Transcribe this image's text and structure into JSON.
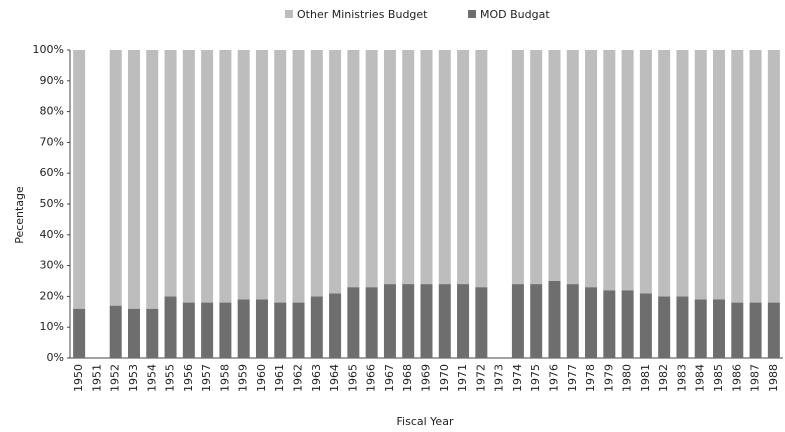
{
  "chart_data": {
    "type": "stacked_bar",
    "ylabel": "Pecentage",
    "xlabel": "Fiscal Year",
    "categories": [
      "1950",
      "1951",
      "1952",
      "1953",
      "1954",
      "1955",
      "1956",
      "1957",
      "1958",
      "1959",
      "1960",
      "1961",
      "1962",
      "1963",
      "1964",
      "1965",
      "1966",
      "1967",
      "1968",
      "1969",
      "1970",
      "1971",
      "1972",
      "1973",
      "1974",
      "1975",
      "1976",
      "1977",
      "1978",
      "1979",
      "1980",
      "1981",
      "1982",
      "1983",
      "1984",
      "1985",
      "1986",
      "1987",
      "1988"
    ],
    "series": [
      {
        "name": "MOD Budgat",
        "color": "#6e6e6e",
        "values": [
          16,
          null,
          17,
          16,
          16,
          20,
          18,
          18,
          18,
          19,
          19,
          18,
          18,
          20,
          21,
          23,
          23,
          24,
          24,
          24,
          24,
          24,
          23,
          null,
          24,
          24,
          25,
          24,
          23,
          22,
          22,
          21,
          20,
          20,
          19,
          19,
          18,
          18,
          18
        ]
      },
      {
        "name": "Other Ministries Budget",
        "color": "#bdbdbd",
        "values": [
          84,
          null,
          83,
          84,
          84,
          80,
          82,
          82,
          82,
          81,
          81,
          82,
          82,
          80,
          79,
          77,
          77,
          76,
          76,
          76,
          76,
          76,
          77,
          null,
          76,
          76,
          75,
          76,
          77,
          78,
          78,
          79,
          80,
          80,
          81,
          81,
          82,
          82,
          82
        ]
      }
    ],
    "legend_order": [
      1,
      0
    ],
    "ylim": [
      0,
      100
    ],
    "yticks": [
      {
        "value": 0,
        "label": "0%"
      },
      {
        "value": 10,
        "label": "10%"
      },
      {
        "value": 20,
        "label": "20%"
      },
      {
        "value": 30,
        "label": "30%"
      },
      {
        "value": 40,
        "label": "40%"
      },
      {
        "value": 50,
        "label": "50%"
      },
      {
        "value": 60,
        "label": "60%"
      },
      {
        "value": 70,
        "label": "70%"
      },
      {
        "value": 80,
        "label": "80%"
      },
      {
        "value": 90,
        "label": "90%"
      },
      {
        "value": 100,
        "label": "100%"
      }
    ]
  }
}
